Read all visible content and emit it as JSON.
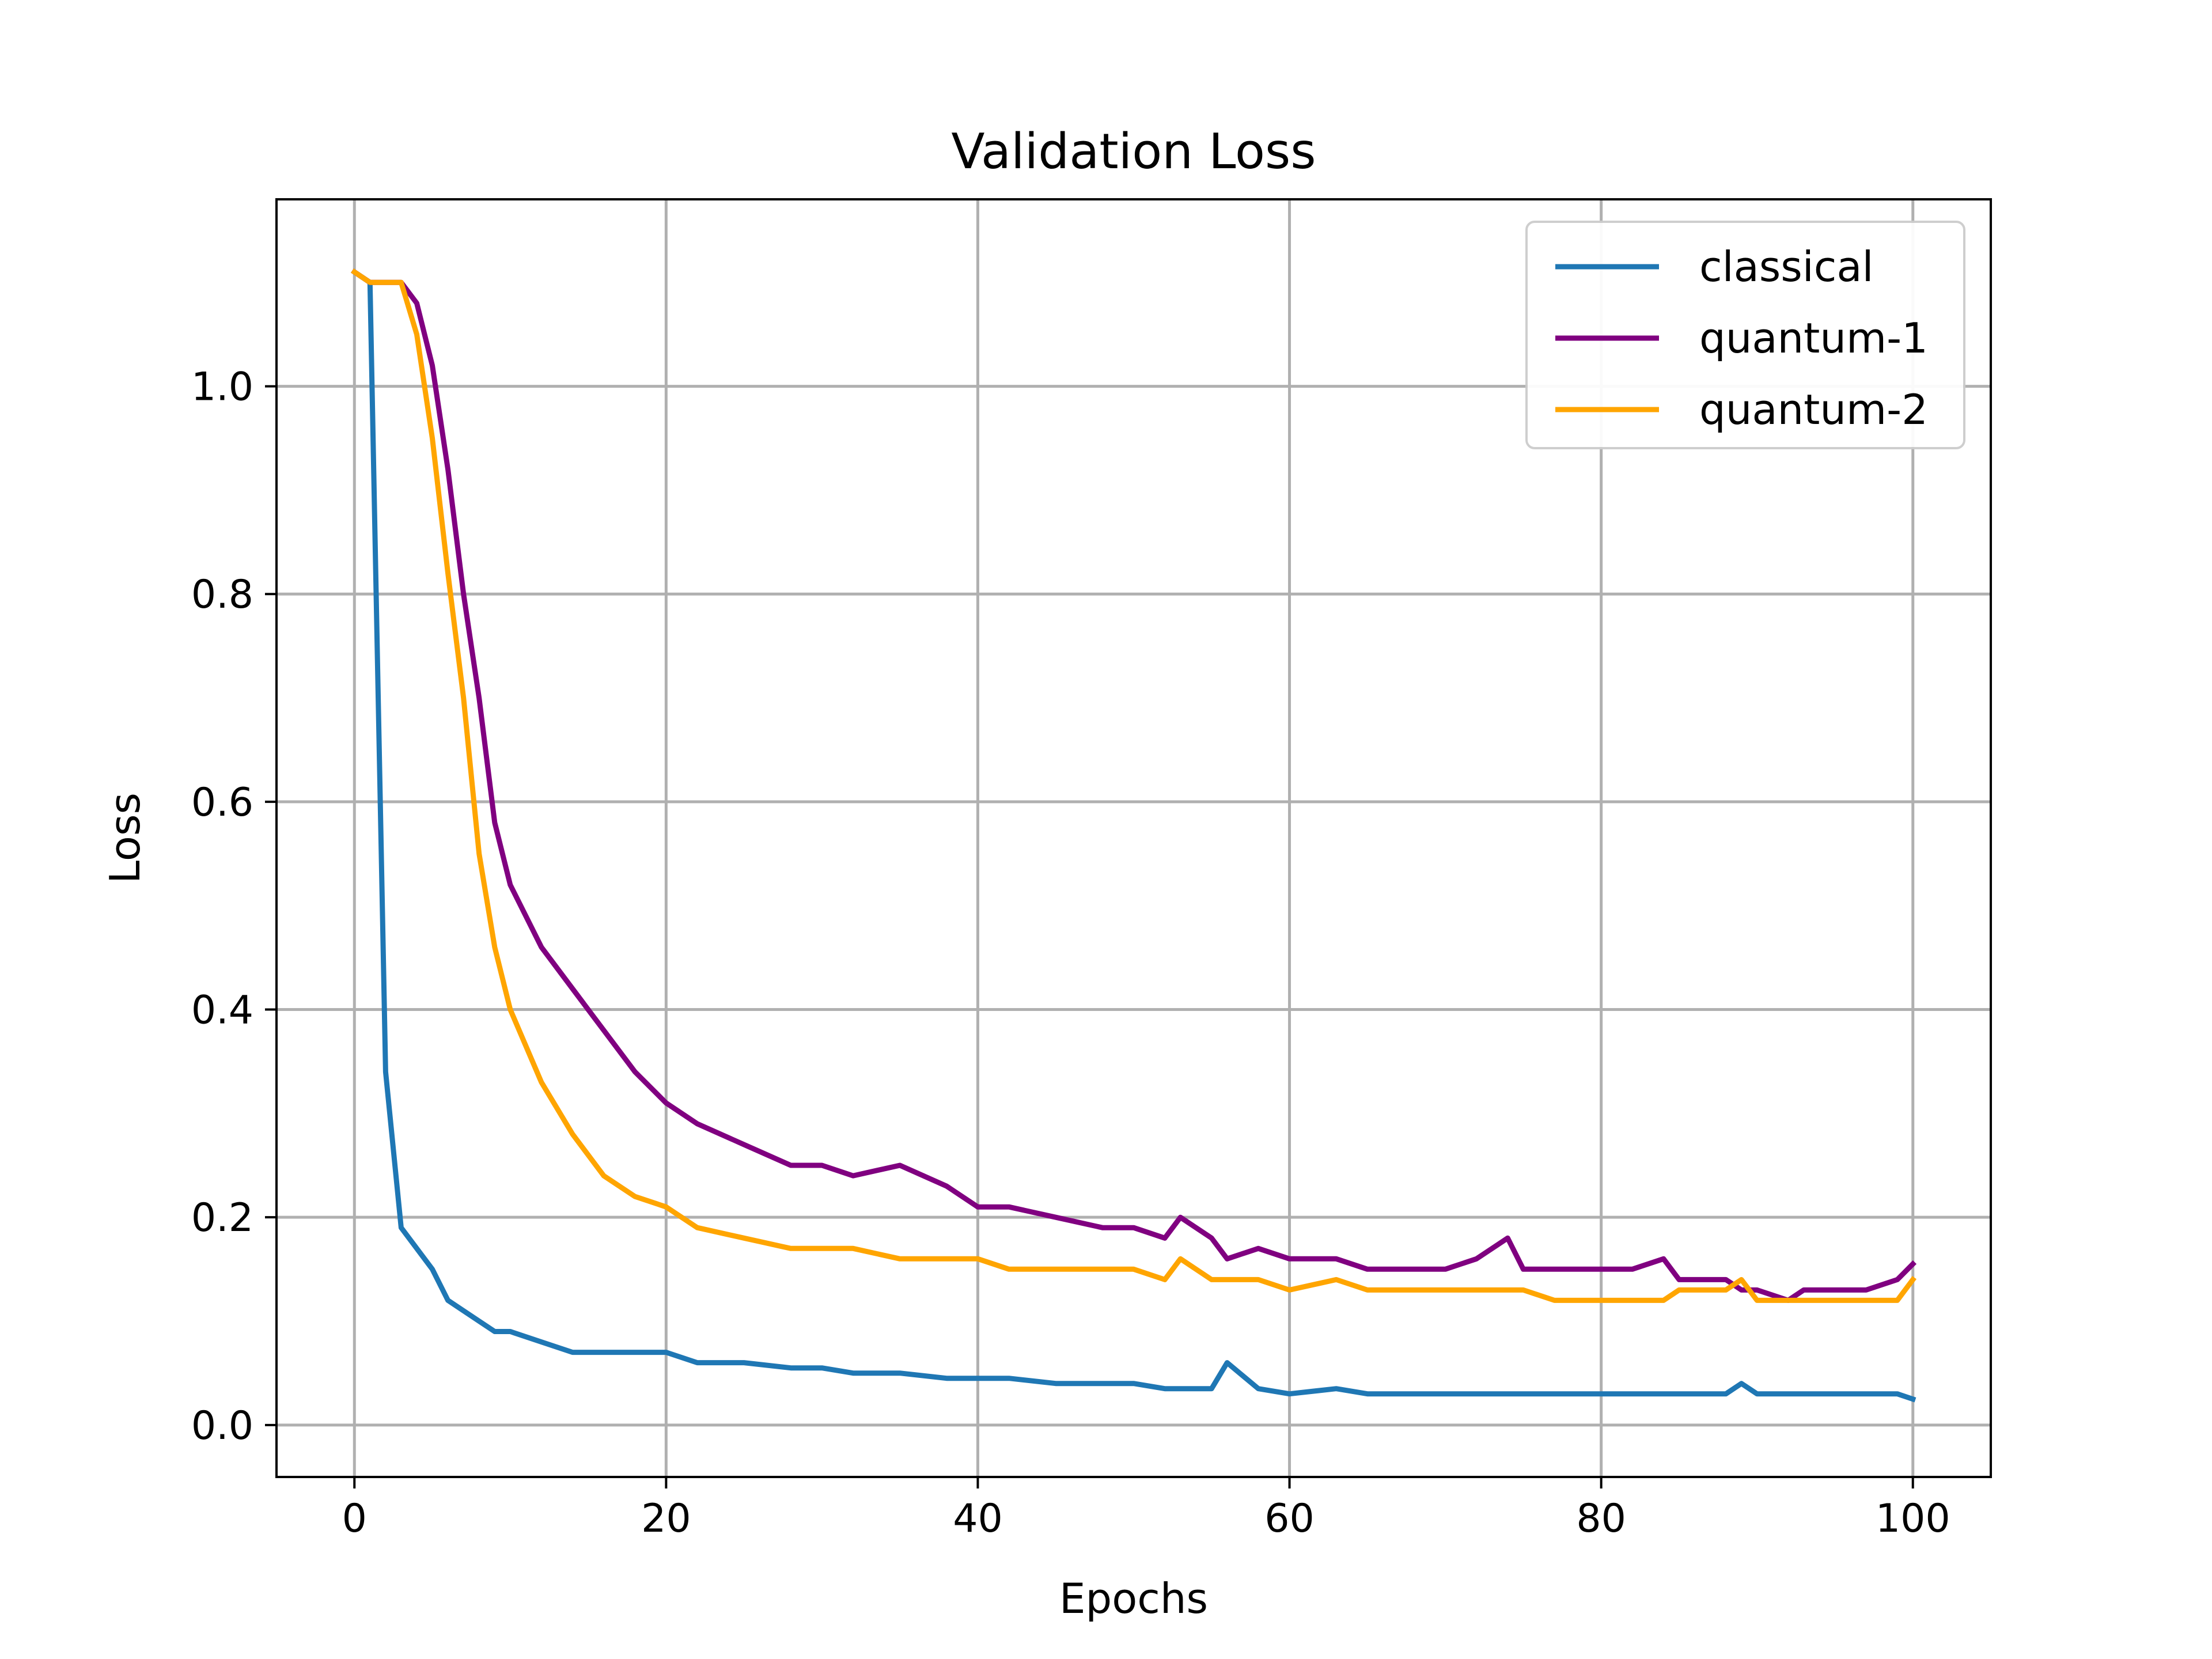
{
  "chart_data": {
    "type": "line",
    "title": "Validation Loss",
    "xlabel": "Epochs",
    "ylabel": "Loss",
    "xlim": [
      -5,
      105
    ],
    "ylim": [
      -0.05,
      1.18
    ],
    "xticks": [
      0,
      20,
      40,
      60,
      80,
      100
    ],
    "yticks": [
      0.0,
      0.2,
      0.4,
      0.6,
      0.8,
      1.0
    ],
    "xtick_labels": [
      "0",
      "20",
      "40",
      "60",
      "80",
      "100"
    ],
    "ytick_labels": [
      "0.0",
      "0.2",
      "0.4",
      "0.6",
      "0.8",
      "1.0"
    ],
    "grid": true,
    "legend_position": "top-right",
    "x": [
      0,
      1,
      2,
      3,
      4,
      5,
      6,
      7,
      8,
      9,
      10,
      12,
      14,
      16,
      18,
      20,
      22,
      25,
      28,
      30,
      32,
      35,
      38,
      40,
      42,
      45,
      48,
      50,
      52,
      53,
      55,
      56,
      58,
      60,
      63,
      65,
      68,
      70,
      72,
      74,
      75,
      77,
      80,
      82,
      84,
      85,
      86,
      88,
      89,
      90,
      92,
      93,
      95,
      97,
      99,
      100
    ],
    "series": [
      {
        "name": "classical",
        "color": "#1f77b4",
        "values": [
          1.11,
          1.1,
          0.34,
          0.19,
          0.17,
          0.15,
          0.12,
          0.11,
          0.1,
          0.09,
          0.09,
          0.08,
          0.07,
          0.07,
          0.07,
          0.07,
          0.06,
          0.06,
          0.055,
          0.055,
          0.05,
          0.05,
          0.045,
          0.045,
          0.045,
          0.04,
          0.04,
          0.04,
          0.035,
          0.035,
          0.035,
          0.06,
          0.035,
          0.03,
          0.035,
          0.03,
          0.03,
          0.03,
          0.03,
          0.03,
          0.03,
          0.03,
          0.03,
          0.03,
          0.03,
          0.03,
          0.03,
          0.03,
          0.04,
          0.03,
          0.03,
          0.03,
          0.03,
          0.03,
          0.03,
          0.025
        ]
      },
      {
        "name": "quantum-1",
        "color": "#800080",
        "values": [
          1.11,
          1.1,
          1.1,
          1.1,
          1.08,
          1.02,
          0.92,
          0.8,
          0.7,
          0.58,
          0.52,
          0.46,
          0.42,
          0.38,
          0.34,
          0.31,
          0.29,
          0.27,
          0.25,
          0.25,
          0.24,
          0.25,
          0.23,
          0.21,
          0.21,
          0.2,
          0.19,
          0.19,
          0.18,
          0.2,
          0.18,
          0.16,
          0.17,
          0.16,
          0.16,
          0.15,
          0.15,
          0.15,
          0.16,
          0.18,
          0.15,
          0.15,
          0.15,
          0.15,
          0.16,
          0.14,
          0.14,
          0.14,
          0.13,
          0.13,
          0.12,
          0.13,
          0.13,
          0.13,
          0.14,
          0.155
        ]
      },
      {
        "name": "quantum-2",
        "color": "#ffa500",
        "values": [
          1.11,
          1.1,
          1.1,
          1.1,
          1.05,
          0.95,
          0.82,
          0.7,
          0.55,
          0.46,
          0.4,
          0.33,
          0.28,
          0.24,
          0.22,
          0.21,
          0.19,
          0.18,
          0.17,
          0.17,
          0.17,
          0.16,
          0.16,
          0.16,
          0.15,
          0.15,
          0.15,
          0.15,
          0.14,
          0.16,
          0.14,
          0.14,
          0.14,
          0.13,
          0.14,
          0.13,
          0.13,
          0.13,
          0.13,
          0.13,
          0.13,
          0.12,
          0.12,
          0.12,
          0.12,
          0.13,
          0.13,
          0.13,
          0.14,
          0.12,
          0.12,
          0.12,
          0.12,
          0.12,
          0.12,
          0.14
        ]
      }
    ]
  }
}
